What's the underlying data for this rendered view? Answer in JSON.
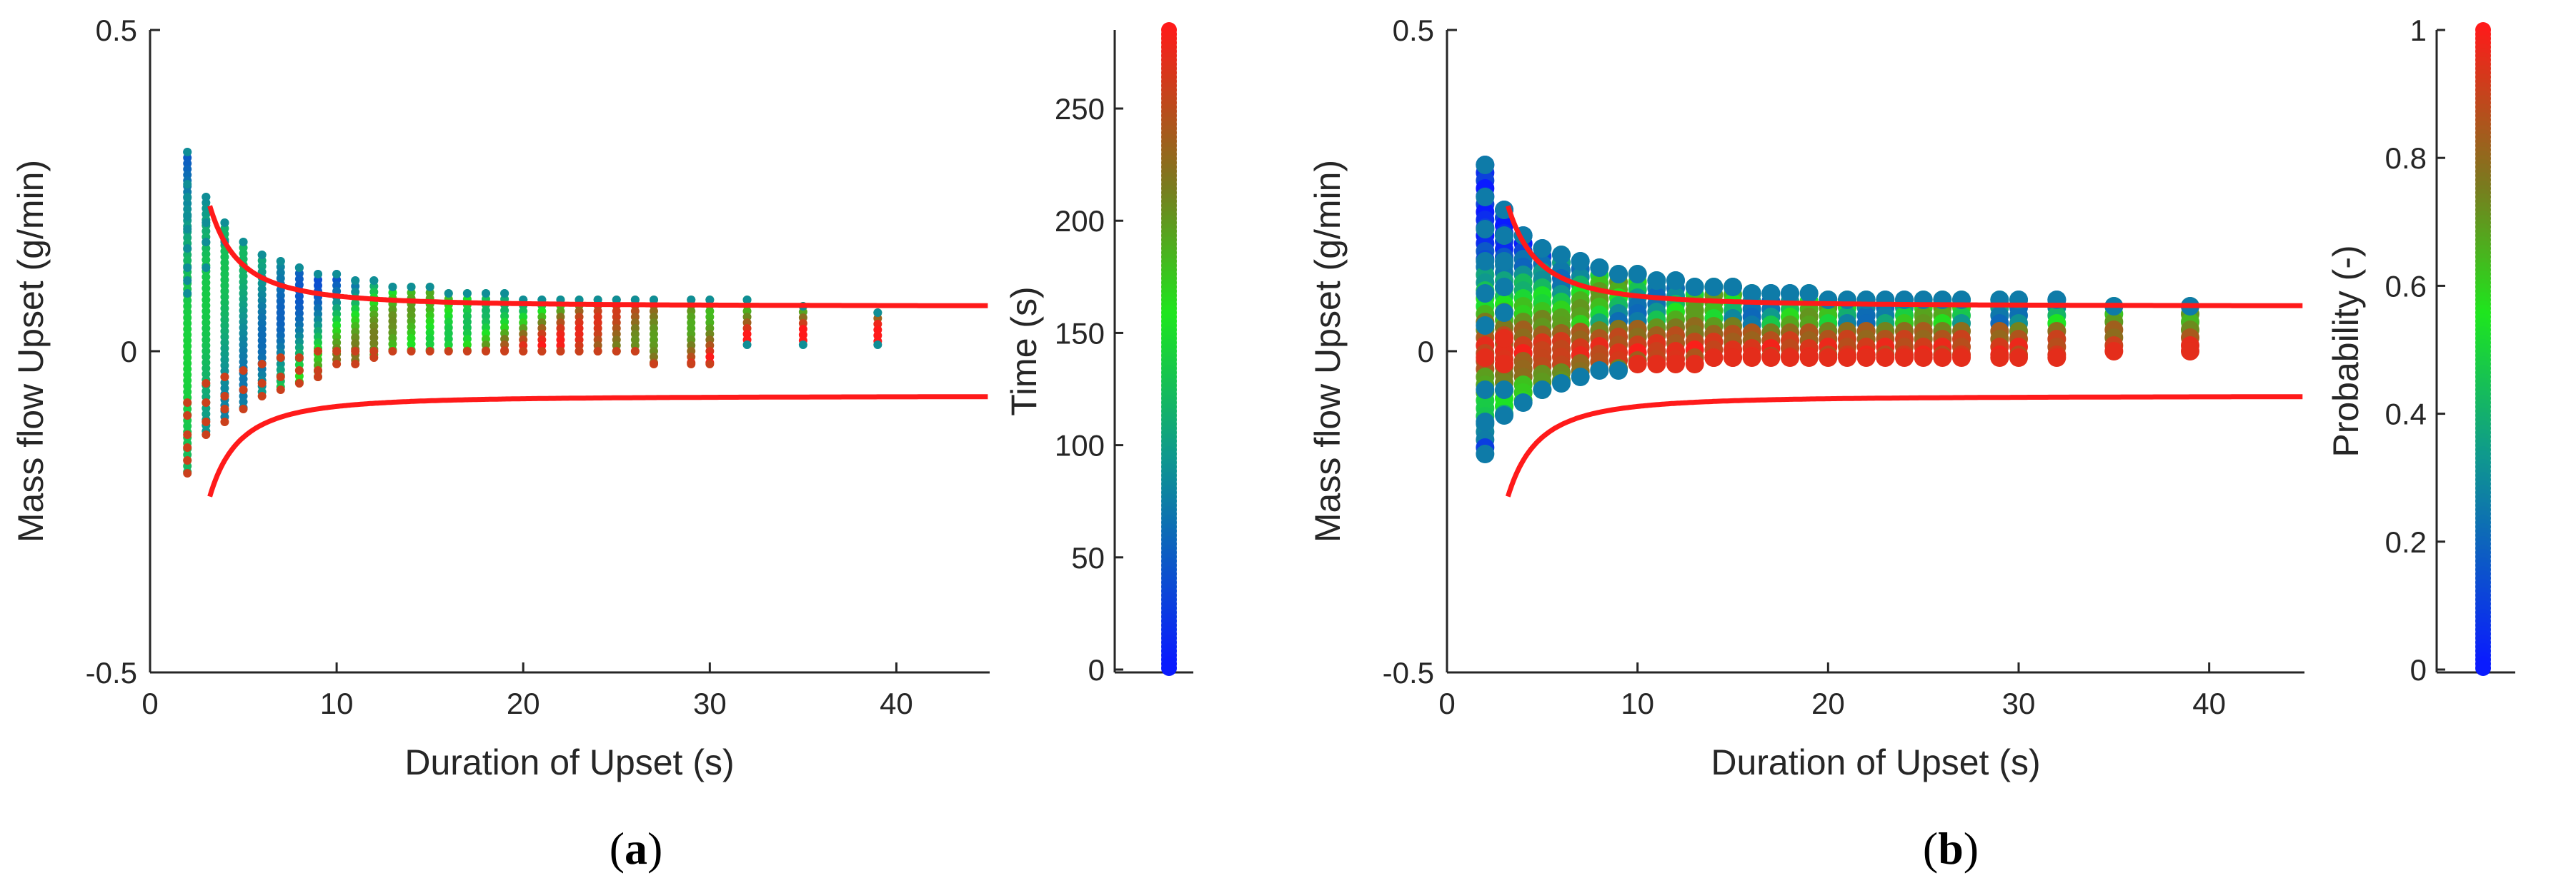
{
  "chart_data": [
    {
      "type": "scatter",
      "panel_label": "a",
      "xlabel": "Duration of Upset (s)",
      "ylabel": "Mass flow Upset (g/min)",
      "xlim": [
        0,
        45
      ],
      "ylim": [
        -0.5,
        0.5
      ],
      "x_ticks": [
        0,
        10,
        20,
        30,
        40
      ],
      "y_ticks": [
        -0.5,
        0,
        0.5
      ],
      "y_tick_labels": [
        "-0.5",
        "0",
        "0.5"
      ],
      "colorbar": {
        "label": "Time (s)",
        "range": [
          0,
          285
        ],
        "ticks": [
          0,
          50,
          100,
          150,
          200,
          250
        ]
      },
      "bound_curve": {
        "color": "#ff1a1a",
        "upper": "0.07 + 1.6/(x^2)",
        "lower": "-(0.07 + 1.6/(x^2))"
      },
      "columns_x": [
        2,
        3,
        4,
        5,
        6,
        7,
        8,
        9,
        10,
        11,
        12,
        13,
        14,
        15,
        16,
        17,
        18,
        19,
        20,
        21,
        22,
        23,
        24,
        25,
        26,
        27,
        29,
        30,
        32,
        35,
        39
      ],
      "series": [
        {
          "points": [
            [
              2,
              0.31
            ],
            [
              2,
              0.26
            ],
            [
              2,
              0.24
            ],
            [
              2,
              0.21
            ],
            [
              2,
              0.19
            ],
            [
              2,
              0.16
            ],
            [
              2,
              0.13
            ],
            [
              2,
              0.11
            ],
            [
              2,
              0.09
            ],
            [
              2,
              -0.08
            ],
            [
              2,
              -0.1
            ],
            [
              2,
              -0.13
            ],
            [
              2,
              -0.15
            ],
            [
              2,
              -0.17
            ],
            [
              2,
              -0.19
            ],
            [
              3,
              0.24
            ],
            [
              3,
              0.2
            ],
            [
              3,
              0.17
            ],
            [
              3,
              0.13
            ],
            [
              3,
              -0.05
            ],
            [
              3,
              -0.08
            ],
            [
              3,
              -0.11
            ],
            [
              3,
              -0.13
            ],
            [
              4,
              0.2
            ],
            [
              4,
              0.17
            ],
            [
              4,
              -0.04
            ],
            [
              4,
              -0.07
            ],
            [
              4,
              -0.09
            ],
            [
              4,
              -0.11
            ],
            [
              5,
              0.17
            ],
            [
              5,
              -0.03
            ],
            [
              5,
              -0.06
            ],
            [
              5,
              -0.09
            ],
            [
              6,
              0.15
            ],
            [
              6,
              -0.02
            ],
            [
              6,
              -0.05
            ],
            [
              6,
              -0.07
            ],
            [
              7,
              0.14
            ],
            [
              7,
              -0.01
            ],
            [
              7,
              -0.04
            ],
            [
              7,
              -0.06
            ],
            [
              8,
              0.13
            ],
            [
              8,
              -0.01
            ],
            [
              8,
              -0.03
            ],
            [
              8,
              -0.05
            ],
            [
              9,
              0.12
            ],
            [
              9,
              0.0
            ],
            [
              9,
              -0.03
            ],
            [
              9,
              -0.04
            ],
            [
              10,
              0.12
            ],
            [
              10,
              0.0
            ],
            [
              10,
              -0.02
            ],
            [
              11,
              0.11
            ],
            [
              11,
              0.0
            ],
            [
              11,
              -0.02
            ],
            [
              12,
              0.11
            ],
            [
              12,
              0.0
            ],
            [
              12,
              -0.01
            ],
            [
              13,
              0.1
            ],
            [
              13,
              0.0
            ],
            [
              14,
              0.1
            ],
            [
              14,
              0.0
            ],
            [
              15,
              0.1
            ],
            [
              15,
              0.0
            ],
            [
              16,
              0.09
            ],
            [
              16,
              0.0
            ],
            [
              17,
              0.09
            ],
            [
              17,
              0.0
            ],
            [
              18,
              0.09
            ],
            [
              18,
              0.0
            ],
            [
              19,
              0.09
            ],
            [
              19,
              0.0
            ],
            [
              20,
              0.08
            ],
            [
              20,
              0.0
            ],
            [
              21,
              0.08
            ],
            [
              21,
              0.0
            ],
            [
              22,
              0.08
            ],
            [
              22,
              0.0
            ],
            [
              23,
              0.08
            ],
            [
              23,
              0.0
            ],
            [
              24,
              0.08
            ],
            [
              24,
              0.0
            ],
            [
              25,
              0.08
            ],
            [
              25,
              0.0
            ],
            [
              26,
              0.08
            ],
            [
              26,
              0.0
            ],
            [
              27,
              0.08
            ],
            [
              27,
              -0.02
            ],
            [
              29,
              0.08
            ],
            [
              29,
              -0.02
            ],
            [
              30,
              0.08
            ],
            [
              30,
              -0.02
            ],
            [
              32,
              0.08
            ],
            [
              32,
              0.01
            ],
            [
              35,
              0.07
            ],
            [
              35,
              0.01
            ],
            [
              39,
              0.06
            ],
            [
              39,
              0.01
            ]
          ]
        }
      ]
    },
    {
      "type": "scatter",
      "panel_label": "b",
      "xlabel": "Duration of Upset (s)",
      "ylabel": "Mass flow Upset (g/min)",
      "xlim": [
        0,
        45
      ],
      "ylim": [
        -0.5,
        0.5
      ],
      "x_ticks": [
        0,
        10,
        20,
        30,
        40
      ],
      "y_ticks": [
        -0.5,
        0,
        0.5
      ],
      "y_tick_labels": [
        "-0.5",
        "0",
        "0.5"
      ],
      "colorbar": {
        "label": "Probability (-)",
        "range": [
          0,
          1
        ],
        "ticks": [
          0,
          0.2,
          0.4,
          0.6,
          0.8,
          1
        ],
        "tick_labels": [
          "0",
          "0.2",
          "0.4",
          "0.6",
          "0.8",
          "1"
        ]
      },
      "bound_curve": {
        "color": "#ff1a1a",
        "upper": "0.07 + 1.6/(x^2)",
        "lower": "-(0.07 + 1.6/(x^2))"
      },
      "columns_x": [
        2,
        3,
        4,
        5,
        6,
        7,
        8,
        9,
        10,
        11,
        12,
        13,
        14,
        15,
        16,
        17,
        18,
        19,
        20,
        21,
        22,
        23,
        24,
        25,
        26,
        27,
        29,
        30,
        32,
        35,
        39
      ],
      "series": [
        {
          "points": [
            [
              2,
              0.29
            ],
            [
              2,
              0.24
            ],
            [
              2,
              0.19
            ],
            [
              2,
              0.14
            ],
            [
              2,
              0.09
            ],
            [
              2,
              0.04
            ],
            [
              2,
              -0.01
            ],
            [
              2,
              -0.06
            ],
            [
              2,
              -0.11
            ],
            [
              2,
              -0.16
            ],
            [
              3,
              0.22
            ],
            [
              3,
              0.18
            ],
            [
              3,
              0.14
            ],
            [
              3,
              0.1
            ],
            [
              3,
              0.06
            ],
            [
              3,
              0.02
            ],
            [
              3,
              -0.02
            ],
            [
              3,
              -0.06
            ],
            [
              3,
              -0.1
            ],
            [
              4,
              0.18
            ],
            [
              4,
              -0.08
            ],
            [
              5,
              0.16
            ],
            [
              5,
              -0.06
            ],
            [
              6,
              0.15
            ],
            [
              6,
              -0.05
            ],
            [
              7,
              0.14
            ],
            [
              7,
              -0.04
            ],
            [
              8,
              0.13
            ],
            [
              8,
              -0.03
            ],
            [
              9,
              0.12
            ],
            [
              9,
              -0.03
            ],
            [
              10,
              0.12
            ],
            [
              10,
              -0.02
            ],
            [
              11,
              0.11
            ],
            [
              11,
              -0.02
            ],
            [
              12,
              0.11
            ],
            [
              12,
              -0.02
            ],
            [
              13,
              0.1
            ],
            [
              13,
              -0.02
            ],
            [
              14,
              0.1
            ],
            [
              14,
              -0.01
            ],
            [
              15,
              0.1
            ],
            [
              15,
              -0.01
            ],
            [
              16,
              0.09
            ],
            [
              16,
              -0.01
            ],
            [
              17,
              0.09
            ],
            [
              17,
              -0.01
            ],
            [
              18,
              0.09
            ],
            [
              18,
              -0.01
            ],
            [
              19,
              0.09
            ],
            [
              19,
              -0.01
            ],
            [
              20,
              0.08
            ],
            [
              20,
              -0.01
            ],
            [
              21,
              0.08
            ],
            [
              21,
              -0.01
            ],
            [
              22,
              0.08
            ],
            [
              22,
              -0.01
            ],
            [
              23,
              0.08
            ],
            [
              23,
              -0.01
            ],
            [
              24,
              0.08
            ],
            [
              24,
              -0.01
            ],
            [
              25,
              0.08
            ],
            [
              25,
              -0.01
            ],
            [
              26,
              0.08
            ],
            [
              26,
              -0.01
            ],
            [
              27,
              0.08
            ],
            [
              27,
              -0.01
            ],
            [
              29,
              0.08
            ],
            [
              29,
              -0.01
            ],
            [
              30,
              0.08
            ],
            [
              30,
              -0.01
            ],
            [
              32,
              0.08
            ],
            [
              32,
              -0.01
            ],
            [
              35,
              0.07
            ],
            [
              35,
              0.0
            ],
            [
              39,
              0.07
            ],
            [
              39,
              0.0
            ]
          ]
        }
      ]
    }
  ]
}
